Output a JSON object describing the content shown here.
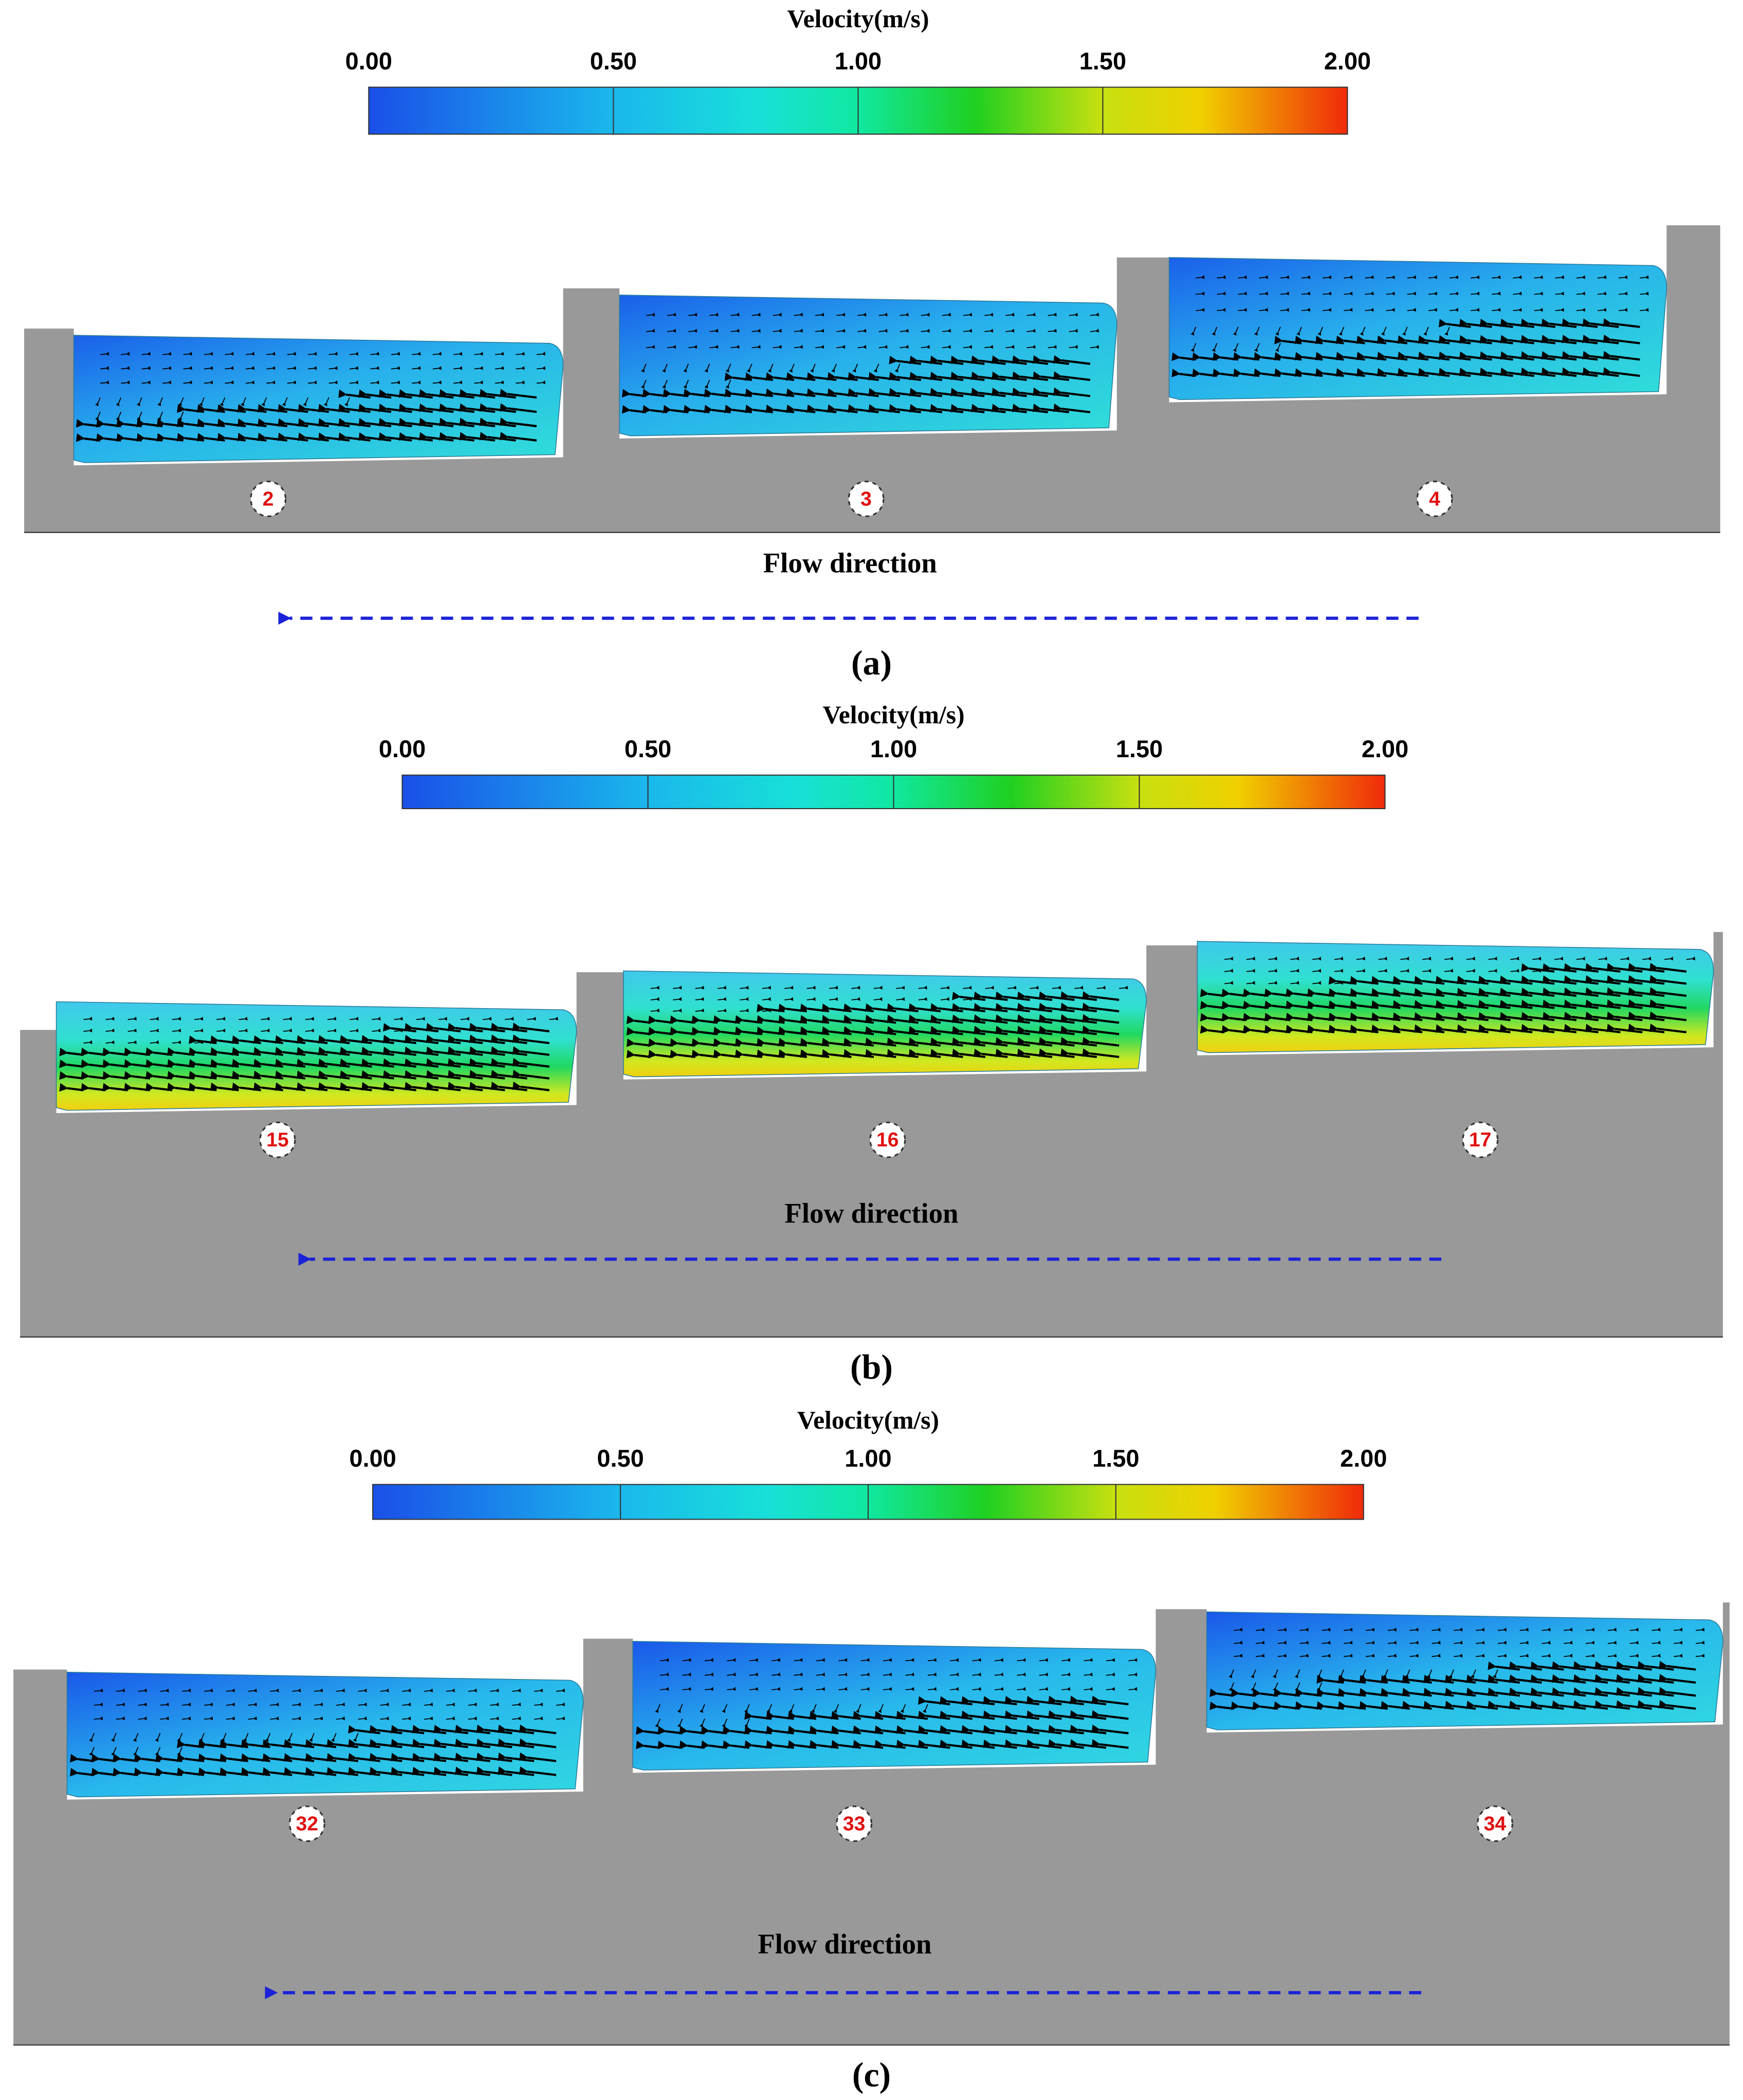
{
  "panels": [
    {
      "colorbar": {
        "title": "Velocity(m/s)",
        "ticks": [
          "0.00",
          "0.50",
          "1.00",
          "1.50",
          "2.00"
        ]
      },
      "pools": [
        "2",
        "3",
        "4"
      ],
      "flow_label": "Flow direction",
      "caption": "(a)"
    },
    {
      "colorbar": {
        "title": "Velocity(m/s)",
        "ticks": [
          "0.00",
          "0.50",
          "1.00",
          "1.50",
          "2.00"
        ]
      },
      "pools": [
        "15",
        "16",
        "17"
      ],
      "flow_label": "Flow direction",
      "caption": "(b)"
    },
    {
      "colorbar": {
        "title": "Velocity(m/s)",
        "ticks": [
          "0.00",
          "0.50",
          "1.00",
          "1.50",
          "2.00"
        ]
      },
      "pools": [
        "32",
        "33",
        "34"
      ],
      "flow_label": "Flow direction",
      "caption": "(c)"
    }
  ]
}
